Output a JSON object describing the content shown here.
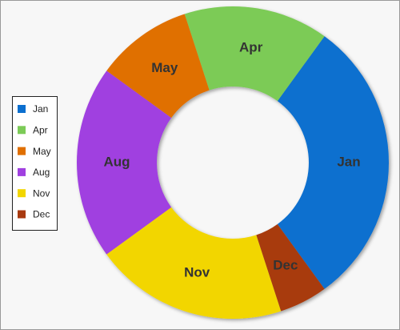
{
  "chart_data": {
    "type": "donut",
    "categories": [
      "Jan",
      "Apr",
      "May",
      "Aug",
      "Nov",
      "Dec"
    ],
    "values": [
      30,
      15,
      10,
      20,
      20,
      5
    ],
    "colors": [
      "#0b6fcf",
      "#7ccb57",
      "#e06f00",
      "#a040e0",
      "#f2d600",
      "#a83a10"
    ],
    "legend": "left"
  }
}
